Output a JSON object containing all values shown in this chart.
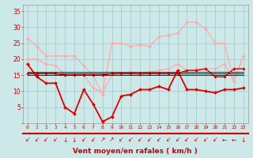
{
  "x": [
    0,
    1,
    2,
    3,
    4,
    5,
    6,
    7,
    8,
    9,
    10,
    11,
    12,
    13,
    14,
    15,
    16,
    17,
    18,
    19,
    20,
    21,
    22,
    23
  ],
  "background_color": "#cce8e8",
  "grid_color": "#aacccc",
  "xlabel": "Vent moyen/en rafales ( km/h )",
  "xlabel_color": "#cc0000",
  "tick_color": "#cc0000",
  "ylim": [
    0,
    37
  ],
  "yticks": [
    0,
    5,
    10,
    15,
    20,
    25,
    30,
    35
  ],
  "series": [
    {
      "name": "rafales_max",
      "color": "#ffaaaa",
      "linewidth": 0.9,
      "marker": "D",
      "markersize": 2.0,
      "values": [
        26.5,
        24.0,
        21.0,
        21.0,
        21.0,
        21.0,
        18.0,
        15.0,
        9.0,
        25.0,
        25.0,
        24.0,
        24.5,
        24.0,
        27.0,
        27.5,
        28.0,
        31.5,
        31.5,
        29.5,
        25.0,
        25.0,
        13.0,
        21.0
      ]
    },
    {
      "name": "vent_max",
      "color": "#ffaaaa",
      "linewidth": 0.9,
      "marker": "D",
      "markersize": 2.0,
      "values": [
        20.0,
        20.0,
        18.5,
        18.0,
        15.0,
        15.0,
        15.0,
        11.0,
        9.5,
        15.0,
        15.5,
        16.0,
        15.0,
        16.0,
        16.5,
        17.0,
        18.5,
        16.5,
        17.0,
        17.0,
        17.0,
        18.5,
        13.0,
        21.0
      ]
    },
    {
      "name": "vent_moyen",
      "color": "#dd0000",
      "linewidth": 1.3,
      "marker": "D",
      "markersize": 2.0,
      "values": [
        18.5,
        14.5,
        12.5,
        12.5,
        5.0,
        3.0,
        10.5,
        6.0,
        0.5,
        2.0,
        8.5,
        9.0,
        10.5,
        10.5,
        11.5,
        10.5,
        16.5,
        10.5,
        10.5,
        10.0,
        9.5,
        10.5,
        10.5,
        11.0
      ]
    },
    {
      "name": "vent_daily_avg",
      "color": "#dd0000",
      "linewidth": 1.0,
      "marker": "D",
      "markersize": 1.8,
      "values": [
        15.5,
        15.5,
        15.5,
        15.5,
        15.0,
        15.0,
        15.0,
        15.0,
        15.0,
        15.5,
        15.5,
        15.5,
        15.5,
        15.5,
        15.5,
        15.5,
        15.5,
        16.5,
        16.5,
        17.0,
        14.5,
        14.5,
        17.0,
        17.0
      ]
    },
    {
      "name": "vent_climatol1",
      "color": "#880000",
      "linewidth": 0.7,
      "marker": null,
      "markersize": 0,
      "values": [
        15.0,
        15.0,
        15.0,
        15.0,
        15.0,
        15.0,
        15.0,
        15.0,
        15.0,
        15.0,
        15.0,
        15.0,
        15.0,
        15.0,
        15.0,
        15.0,
        15.0,
        15.0,
        15.0,
        15.0,
        15.0,
        15.0,
        15.0,
        15.0
      ]
    },
    {
      "name": "vent_climatol2",
      "color": "#880000",
      "linewidth": 0.7,
      "marker": null,
      "markersize": 0,
      "values": [
        16.0,
        16.0,
        16.0,
        16.0,
        16.0,
        16.0,
        16.0,
        16.0,
        16.0,
        16.0,
        16.0,
        16.0,
        16.0,
        16.0,
        16.0,
        16.0,
        16.0,
        16.0,
        16.0,
        16.0,
        16.0,
        16.0,
        16.0,
        16.0
      ]
    },
    {
      "name": "black_line",
      "color": "#111111",
      "linewidth": 0.7,
      "marker": null,
      "markersize": 0,
      "values": [
        15.5,
        15.5,
        15.5,
        15.5,
        15.5,
        15.5,
        15.5,
        15.5,
        15.5,
        15.5,
        15.5,
        15.5,
        15.5,
        15.5,
        15.5,
        15.5,
        15.5,
        15.5,
        15.5,
        15.5,
        15.5,
        15.5,
        15.5,
        15.5
      ]
    }
  ],
  "wind_arrows": {
    "x": [
      0,
      1,
      2,
      3,
      4,
      5,
      6,
      7,
      8,
      9,
      10,
      11,
      12,
      13,
      14,
      15,
      16,
      17,
      18,
      19,
      20,
      21,
      22,
      23
    ],
    "symbols": [
      "↙",
      "↙",
      "↙",
      "↙",
      "↓",
      "↓",
      "↙",
      "↙",
      "↗",
      "↗",
      "↙",
      "↙",
      "↙",
      "↙",
      "↙",
      "↙",
      "↙",
      "↙",
      "↙",
      "↙",
      "↙",
      "←",
      "←",
      "↓"
    ],
    "color": "#cc0000"
  }
}
